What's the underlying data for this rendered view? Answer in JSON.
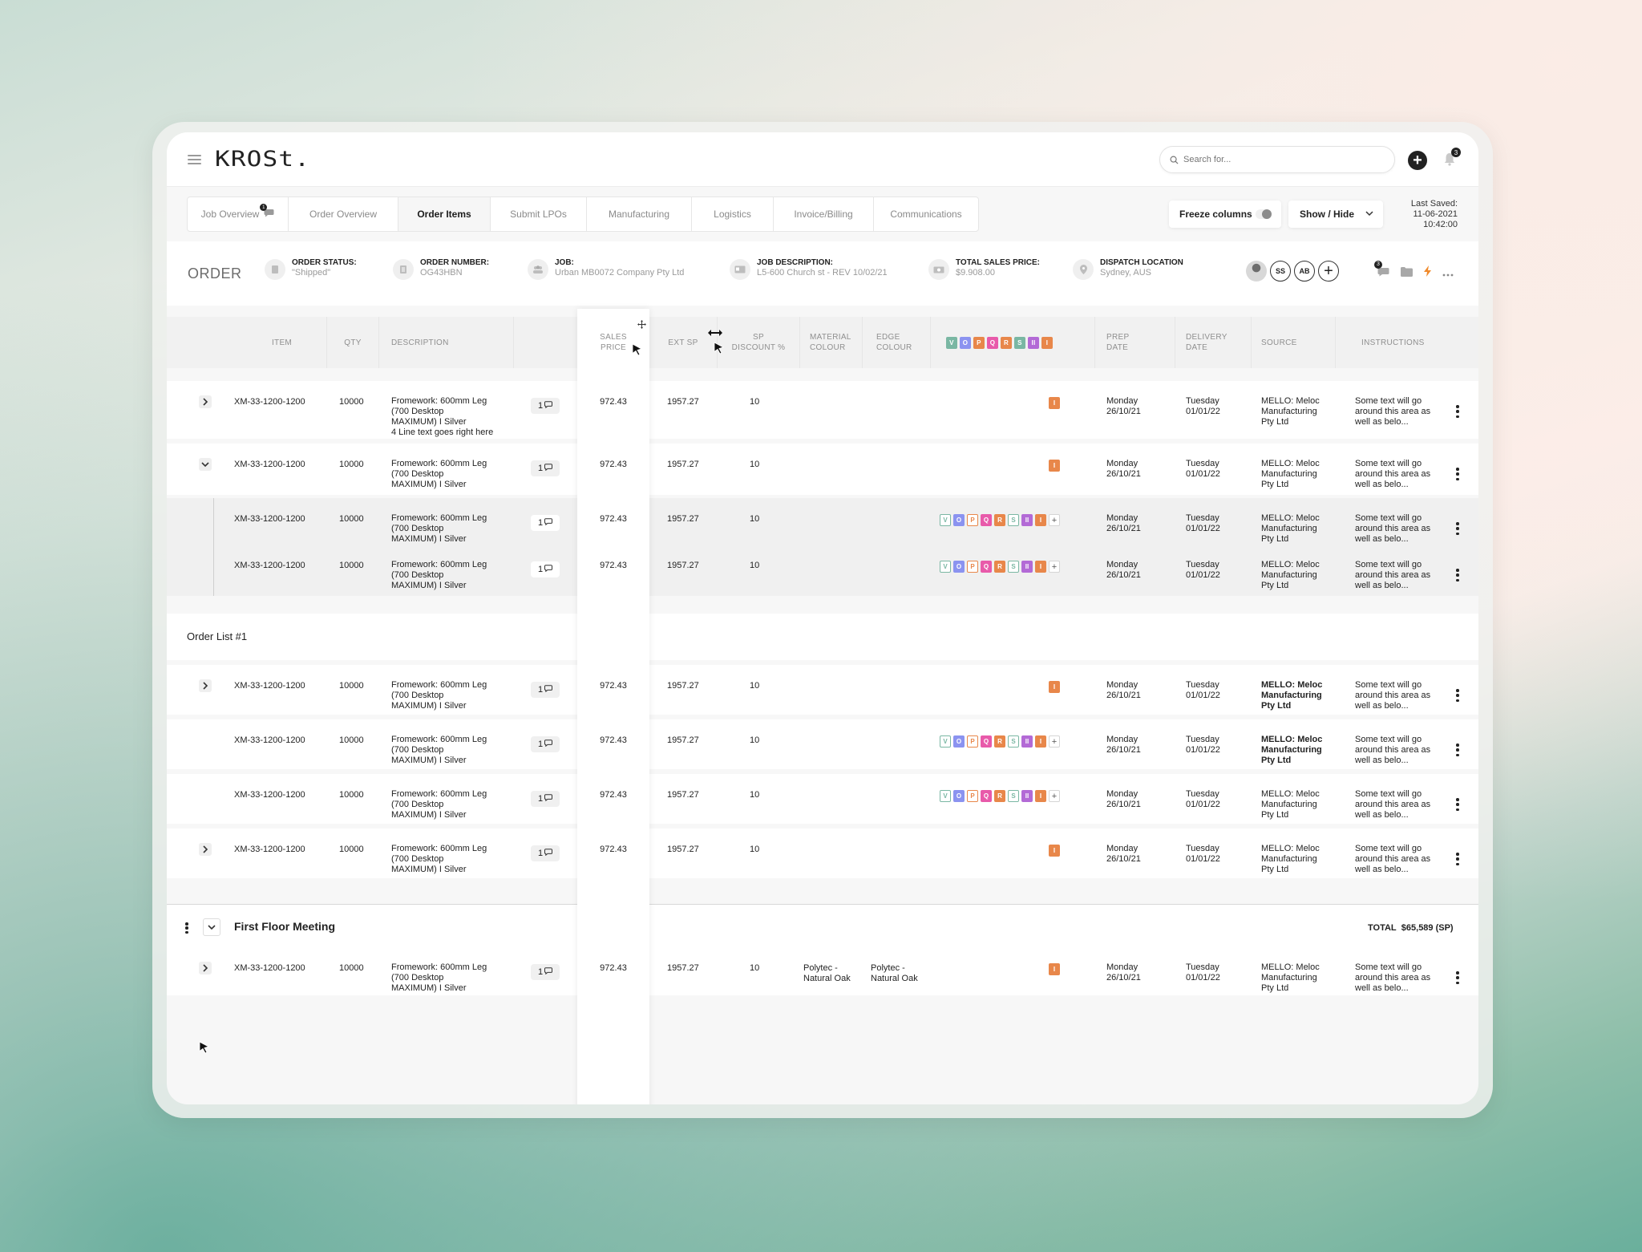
{
  "app": {
    "logo": "KROSt.",
    "search_placeholder": "Search for...",
    "notifications_count": "3"
  },
  "tabs": [
    {
      "label": "Job Overview",
      "badge": "1",
      "active": false
    },
    {
      "label": "Order Overview",
      "active": false
    },
    {
      "label": "Order Items",
      "active": true
    },
    {
      "label": "Submit LPOs",
      "active": false
    },
    {
      "label": "Manufacturing",
      "active": false
    },
    {
      "label": "Logistics",
      "active": false
    },
    {
      "label": "Invoice/Billing",
      "active": false
    },
    {
      "label": "Communications",
      "active": false
    }
  ],
  "toolbar": {
    "freeze_label": "Freeze columns",
    "show_hide_label": "Show / Hide",
    "last_saved_label": "Last Saved:",
    "last_saved_date": "11-06-2021",
    "last_saved_time": "10:42:00"
  },
  "order": {
    "title": "ORDER",
    "fields": [
      {
        "label": "ORDER STATUS:",
        "value": "\"Shipped\""
      },
      {
        "label": "ORDER NUMBER:",
        "value": "OG43HBN"
      },
      {
        "label": "JOB:",
        "value": "Urban MB0072 Company Pty Ltd"
      },
      {
        "label": "JOB DESCRIPTION:",
        "value": "L5-600 Church st - REV 10/02/21"
      },
      {
        "label": "TOTAL SALES PRICE:",
        "value": "$9.908.00"
      },
      {
        "label": "DISPATCH LOCATION",
        "value": "Sydney, AUS"
      }
    ],
    "avatars": [
      "SS",
      "AB"
    ],
    "chat_badge": "3"
  },
  "columns": {
    "item": "ITEM",
    "qty": "QTY",
    "description": "DESCRIPTION",
    "sales_price_1": "SALES",
    "sales_price_2": "PRICE",
    "ext_sp": "EXT SP",
    "sp_discount_1": "SP",
    "sp_discount_2": "DISCOUNT %",
    "material_1": "MATERIAL",
    "material_2": "COLOUR",
    "edge_1": "EDGE",
    "edge_2": "COLOUR",
    "prep_1": "PREP",
    "prep_2": "DATE",
    "delivery_1": "DELIVERY",
    "delivery_2": "DATE",
    "source": "SOURCE",
    "instructions": "INSTRUCTIONS"
  },
  "tag_letters": [
    "V",
    "O",
    "P",
    "Q",
    "R",
    "S",
    "II",
    "I"
  ],
  "tag_colors": {
    "V": "#7ab7a3",
    "O": "#8b93f0",
    "P": "#e8874a",
    "Q": "#e85aaa",
    "R": "#e8874a",
    "S": "#7ab7a3",
    "II": "#b36ad6",
    "I": "#e8874a"
  },
  "rows": [
    {
      "item": "XM-33-1200-1200",
      "qty": "10000",
      "desc1": "Fromework: 600mm Leg",
      "desc2": "(700 Desktop",
      "desc3": "MAXIMUM) I Silver",
      "desc4": "4 Line text goes right here",
      "comments": "1",
      "sales_price": "972.43",
      "ext_sp": "1957.27",
      "discount": "10",
      "prep_day": "Monday",
      "prep_date": "26/10/21",
      "delivery_day": "Tuesday",
      "delivery_date": "01/01/22",
      "source1": "MELLO: Meloc",
      "source2": "Manufacturing",
      "source3": "Pty Ltd",
      "instr1": "Some text will go",
      "instr2": "around this area as",
      "instr3": "well as belo..."
    },
    {
      "item": "XM-33-1200-1200",
      "qty": "10000",
      "desc1": "Fromework: 600mm Leg",
      "desc2": "(700 Desktop",
      "desc3": "MAXIMUM) I Silver",
      "comments": "1",
      "sales_price": "972.43",
      "ext_sp": "1957.27",
      "discount": "10",
      "prep_day": "Monday",
      "prep_date": "26/10/21",
      "delivery_day": "Tuesday",
      "delivery_date": "01/01/22",
      "source1": "MELLO: Meloc",
      "source2": "Manufacturing",
      "source3": "Pty Ltd",
      "instr1": "Some text will go",
      "instr2": "around this area as",
      "instr3": "well as belo..."
    },
    {
      "item": "XM-33-1200-1200",
      "qty": "10000",
      "desc1": "Fromework: 600mm Leg",
      "desc2": "(700 Desktop",
      "desc3": "MAXIMUM) I Silver",
      "comments": "1",
      "sales_price": "972.43",
      "ext_sp": "1957.27",
      "discount": "10",
      "prep_day": "Monday",
      "prep_date": "26/10/21",
      "delivery_day": "Tuesday",
      "delivery_date": "01/01/22",
      "source1": "MELLO: Meloc",
      "source2": "Manufacturing",
      "source3": "Pty Ltd",
      "instr1": "Some text will go",
      "instr2": "around this area as",
      "instr3": "well as belo..."
    },
    {
      "item": "XM-33-1200-1200",
      "qty": "10000",
      "desc1": "Fromework: 600mm Leg",
      "desc2": "(700 Desktop",
      "desc3": "MAXIMUM) I Silver",
      "comments": "1",
      "sales_price": "972.43",
      "ext_sp": "1957.27",
      "discount": "10",
      "prep_day": "Monday",
      "prep_date": "26/10/21",
      "delivery_day": "Tuesday",
      "delivery_date": "01/01/22",
      "source1": "MELLO: Meloc",
      "source2": "Manufacturing",
      "source3": "Pty Ltd",
      "instr1": "Some text will go",
      "instr2": "around this area as",
      "instr3": "well as belo..."
    }
  ],
  "order_list": {
    "title": "Order List #1"
  },
  "group": {
    "title": "First Floor Meeting",
    "total_label": "TOTAL",
    "total_value": "$65,589 (SP)"
  },
  "last_row": {
    "material1": "Polytec -",
    "material2": "Natural Oak",
    "edge1": "Polytec -",
    "edge2": "Natural Oak"
  }
}
